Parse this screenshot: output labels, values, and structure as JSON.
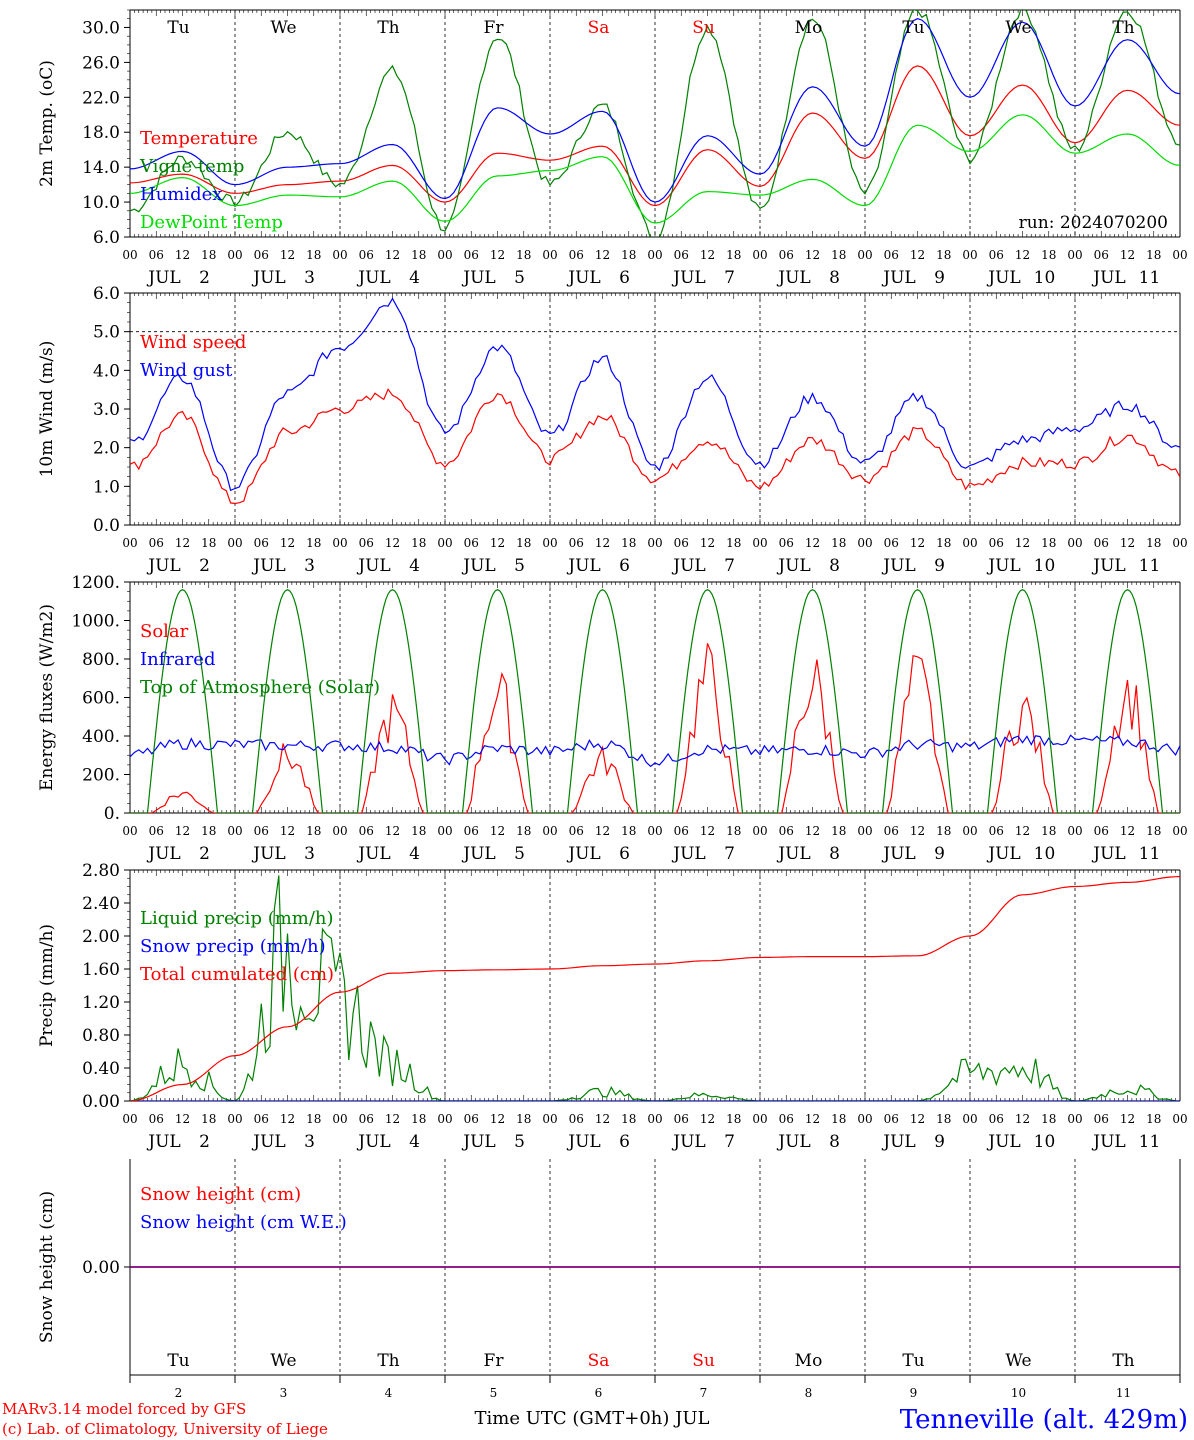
{
  "days": {
    "names": [
      "Tu",
      "We",
      "Th",
      "Fr",
      "Sa",
      "Su",
      "Mo",
      "Tu",
      "We",
      "Th"
    ],
    "weekend_color": "#ff0000",
    "weekend_indices": [
      4,
      5
    ],
    "dates": [
      "2",
      "3",
      "4",
      "5",
      "6",
      "7",
      "8",
      "9",
      "10",
      "11"
    ],
    "month": "JUL",
    "hour_ticks": [
      "00",
      "06",
      "12",
      "18"
    ],
    "end_hour": "00"
  },
  "footer": {
    "model": "MARv3.14 model forced by GFS",
    "credit": "(c) Lab. of Climatology, University of Liege",
    "xlabel": "Time UTC (GMT+0h) JUL",
    "station": "Tenneville (alt. 429m)"
  },
  "colors": {
    "red": "#ff0000",
    "green": "#008000",
    "blue": "#0000ff",
    "lightgreen": "#00dd00",
    "purple": "#800080"
  },
  "chart_data": [
    {
      "type": "line",
      "ylabel": "2m Temp. (oC)",
      "ylim": [
        6,
        32
      ],
      "yticks": [
        "6.0",
        "10.0",
        "14.0",
        "18.0",
        "22.0",
        "26.0",
        "30.0"
      ],
      "ytick_values": [
        6,
        10,
        14,
        18,
        22,
        26,
        30
      ],
      "annotation": "run: 2024070200",
      "x_hours": [
        0,
        12,
        24,
        36,
        48,
        60,
        72,
        84,
        96,
        108,
        120,
        132,
        144,
        156,
        168,
        180,
        192,
        204,
        216,
        228,
        240
      ],
      "series": [
        {
          "name": "Temperature",
          "color": "#ff0000",
          "values": [
            12.2,
            13.2,
            11.0,
            12.0,
            12.4,
            14.2,
            10.0,
            15.6,
            14.8,
            16.4,
            9.6,
            16.0,
            11.8,
            20.2,
            15.0,
            25.6,
            17.6,
            23.4,
            16.8,
            22.8,
            18.8
          ]
        },
        {
          "name": "Vigne temp",
          "color": "#008000",
          "values": [
            9.0,
            15.0,
            10.0,
            18.0,
            12.0,
            25.0,
            7.0,
            29.0,
            12.0,
            21.0,
            6.0,
            30.0,
            9.0,
            31.0,
            11.0,
            32.0,
            15.0,
            32.0,
            16.0,
            32.0,
            17.0
          ]
        },
        {
          "name": "Humidex",
          "color": "#0000ff",
          "values": [
            13.8,
            15.8,
            12.0,
            14.0,
            14.4,
            16.6,
            10.4,
            20.8,
            17.8,
            20.4,
            10.0,
            17.6,
            13.2,
            23.2,
            16.4,
            31.0,
            22.0,
            30.6,
            21.0,
            28.6,
            22.4
          ]
        },
        {
          "name": "DewPoint Temp",
          "color": "#00dd00",
          "values": [
            11.0,
            12.8,
            9.6,
            10.8,
            10.6,
            12.4,
            7.8,
            13.0,
            13.6,
            15.2,
            7.6,
            11.2,
            10.8,
            12.6,
            9.6,
            18.8,
            15.8,
            20.0,
            15.6,
            17.8,
            14.2
          ]
        }
      ]
    },
    {
      "type": "line",
      "ylabel": "10m Wind (m/s)",
      "ylim": [
        0,
        6
      ],
      "yticks": [
        "0.0",
        "1.0",
        "2.0",
        "3.0",
        "4.0",
        "5.0",
        "6.0"
      ],
      "ytick_values": [
        0,
        1,
        2,
        3,
        4,
        5,
        6
      ],
      "dashed_line": 5.0,
      "x_hours": [
        0,
        12,
        24,
        36,
        48,
        60,
        72,
        84,
        96,
        108,
        120,
        132,
        144,
        156,
        168,
        180,
        192,
        204,
        216,
        228,
        240
      ],
      "series": [
        {
          "name": "Wind speed",
          "color": "#ff0000",
          "values": [
            1.5,
            2.8,
            0.6,
            2.4,
            3.0,
            3.4,
            1.6,
            3.4,
            1.7,
            2.8,
            1.2,
            2.2,
            1.0,
            2.2,
            1.2,
            2.4,
            1.0,
            1.6,
            1.6,
            2.3,
            1.3
          ]
        },
        {
          "name": "Wind gust",
          "color": "#0000ff",
          "values": [
            2.1,
            3.8,
            1.0,
            3.4,
            4.6,
            5.8,
            2.4,
            4.6,
            2.3,
            4.3,
            1.5,
            3.8,
            1.6,
            3.3,
            1.6,
            3.3,
            1.5,
            2.2,
            2.5,
            3.1,
            2.0
          ]
        }
      ]
    },
    {
      "type": "line",
      "ylabel": "Energy fluxes (W/m2)",
      "ylim": [
        0,
        1200
      ],
      "yticks": [
        "0.",
        "200.",
        "400.",
        "600.",
        "800.",
        "1000.",
        "1200."
      ],
      "ytick_values": [
        0,
        200,
        400,
        600,
        800,
        1000,
        1200
      ],
      "x_hours": [
        0,
        12,
        24,
        36,
        48,
        60,
        72,
        84,
        96,
        108,
        120,
        132,
        144,
        156,
        168,
        180,
        192,
        204,
        216,
        228,
        240
      ],
      "solar_peaks": [
        130,
        380,
        650,
        780,
        350,
        900,
        870,
        870,
        690,
        800
      ],
      "toa_peak": 1160,
      "series": [
        {
          "name": "Solar",
          "color": "#ff0000",
          "values": [
            0,
            130,
            0,
            380,
            0,
            650,
            0,
            780,
            0,
            350,
            0,
            900,
            0,
            870,
            0,
            870,
            0,
            690,
            0,
            800,
            0
          ]
        },
        {
          "name": "Infrared",
          "color": "#0000ff",
          "values": [
            300,
            360,
            355,
            350,
            350,
            340,
            280,
            335,
            320,
            360,
            270,
            330,
            320,
            330,
            310,
            355,
            345,
            385,
            375,
            370,
            330
          ]
        },
        {
          "name": "Top of Atmosphere (Solar)",
          "color": "#008000",
          "values": [
            0,
            1160,
            0,
            1160,
            0,
            1160,
            0,
            1160,
            0,
            1160,
            0,
            1160,
            0,
            1160,
            0,
            1160,
            0,
            1160,
            0,
            1160,
            0
          ]
        }
      ]
    },
    {
      "type": "line",
      "ylabel": "Precip (mm/h)",
      "ylim": [
        0,
        2.8
      ],
      "yticks": [
        "0.00",
        "0.40",
        "0.80",
        "1.20",
        "1.60",
        "2.00",
        "2.40",
        "2.80"
      ],
      "ytick_values": [
        0,
        0.4,
        0.8,
        1.2,
        1.6,
        2.0,
        2.4,
        2.8
      ],
      "x_hours": [
        0,
        12,
        24,
        36,
        48,
        60,
        72,
        84,
        96,
        108,
        120,
        132,
        144,
        156,
        168,
        180,
        192,
        204,
        216,
        228,
        240
      ],
      "series": [
        {
          "name": "Liquid precip (mm/h)",
          "color": "#008000",
          "values": [
            0,
            0.6,
            0.0,
            2.5,
            1.6,
            0.6,
            0.0,
            0.0,
            0.0,
            0.15,
            0.0,
            0.1,
            0.0,
            0.0,
            0.0,
            0.0,
            0.45,
            0.55,
            0.0,
            0.2,
            0.0
          ]
        },
        {
          "name": "Snow precip (mm/h)",
          "color": "#0000ff",
          "values": [
            0,
            0,
            0,
            0,
            0,
            0,
            0,
            0,
            0,
            0,
            0,
            0,
            0,
            0,
            0,
            0,
            0,
            0,
            0,
            0,
            0
          ]
        },
        {
          "name": "Total cumulated (cm)",
          "color": "#ff0000",
          "values": [
            0,
            0.2,
            0.55,
            0.9,
            1.32,
            1.55,
            1.58,
            1.59,
            1.6,
            1.64,
            1.66,
            1.7,
            1.74,
            1.75,
            1.75,
            1.76,
            2.0,
            2.5,
            2.6,
            2.65,
            2.72
          ]
        }
      ]
    },
    {
      "type": "line",
      "ylabel": "Snow height (cm)",
      "ylim": [
        -1,
        1
      ],
      "yticks": [
        "0.00"
      ],
      "ytick_values": [
        0
      ],
      "x_hours": [
        0,
        240
      ],
      "series": [
        {
          "name": "Snow height (cm)",
          "color": "#ff0000",
          "values": [
            0,
            0
          ]
        },
        {
          "name": "Snow height (cm W.E.)",
          "color": "#0000ff",
          "values": [
            0,
            0
          ]
        }
      ]
    }
  ]
}
